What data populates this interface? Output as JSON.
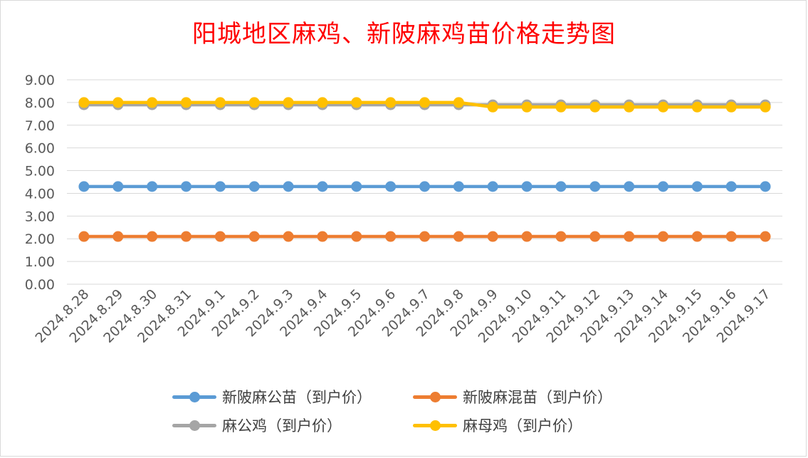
{
  "chart_data": {
    "type": "line",
    "title": "阳城地区麻鸡、新陂麻鸡苗价格走势图",
    "xlabel": "",
    "ylabel": "",
    "ylim": [
      0,
      9
    ],
    "ytick_step": 1,
    "ytick_labels": [
      "0.00",
      "1.00",
      "2.00",
      "3.00",
      "4.00",
      "5.00",
      "6.00",
      "7.00",
      "8.00",
      "9.00"
    ],
    "grid": "horizontal",
    "legend_position": "bottom",
    "categories": [
      "2024.8.28",
      "2024.8.29",
      "2024.8.30",
      "2024.8.31",
      "2024.9.1",
      "2024.9.2",
      "2024.9.3",
      "2024.9.4",
      "2024.9.5",
      "2024.9.6",
      "2024.9.7",
      "2024.9.8",
      "2024.9.9",
      "2024.9.10",
      "2024.9.11",
      "2024.9.12",
      "2024.9.13",
      "2024.9.14",
      "2024.9.15",
      "2024.9.16",
      "2024.9.17"
    ],
    "series": [
      {
        "name": "新陂麻公苗（到户价）",
        "color": "#5b9bd5",
        "values": [
          4.3,
          4.3,
          4.3,
          4.3,
          4.3,
          4.3,
          4.3,
          4.3,
          4.3,
          4.3,
          4.3,
          4.3,
          4.3,
          4.3,
          4.3,
          4.3,
          4.3,
          4.3,
          4.3,
          4.3,
          4.3
        ]
      },
      {
        "name": "新陂麻混苗（到户价）",
        "color": "#ed7d31",
        "values": [
          2.1,
          2.1,
          2.1,
          2.1,
          2.1,
          2.1,
          2.1,
          2.1,
          2.1,
          2.1,
          2.1,
          2.1,
          2.1,
          2.1,
          2.1,
          2.1,
          2.1,
          2.1,
          2.1,
          2.1,
          2.1
        ]
      },
      {
        "name": "麻公鸡（到户价）",
        "color": "#a5a5a5",
        "values": [
          7.9,
          7.9,
          7.9,
          7.9,
          7.9,
          7.9,
          7.9,
          7.9,
          7.9,
          7.9,
          7.9,
          7.9,
          7.9,
          7.9,
          7.9,
          7.9,
          7.9,
          7.9,
          7.9,
          7.9,
          7.9
        ]
      },
      {
        "name": "麻母鸡（到户价）",
        "color": "#ffc000",
        "values": [
          8.0,
          8.0,
          8.0,
          8.0,
          8.0,
          8.0,
          8.0,
          8.0,
          8.0,
          8.0,
          8.0,
          8.0,
          7.8,
          7.8,
          7.8,
          7.8,
          7.8,
          7.8,
          7.8,
          7.8,
          7.8
        ]
      }
    ]
  }
}
